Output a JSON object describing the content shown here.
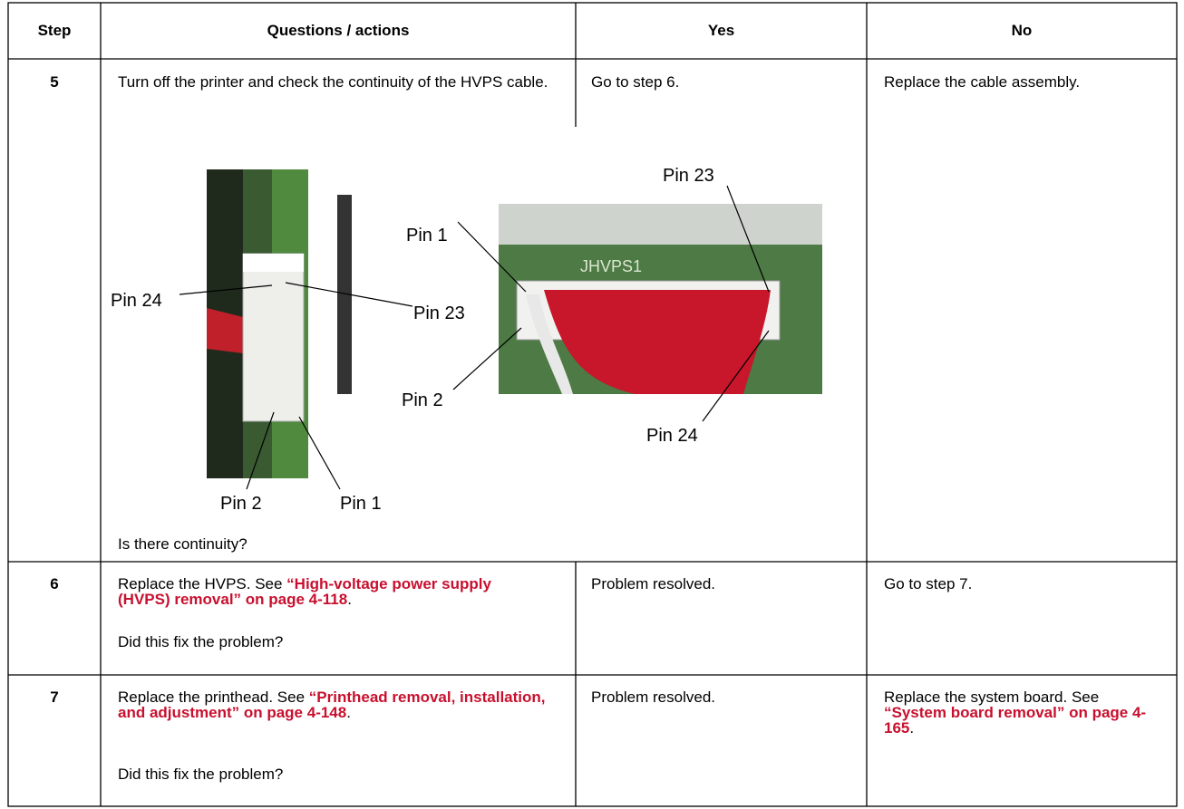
{
  "table": {
    "header": [
      "Step",
      "Questions / actions",
      "Yes",
      "No"
    ],
    "rows": [
      {
        "step": "5",
        "question": "Turn off the printer and check the continuity of the HVPS cable.",
        "figure": {
          "board_marking": "JHVPS1",
          "left_labels": [
            "Pin 24",
            "Pin 23",
            "Pin 2",
            "Pin 1"
          ],
          "right_labels": [
            "Pin 1",
            "Pin 23",
            "Pin 2",
            "Pin 24"
          ]
        },
        "question_after": "Is there continuity?",
        "yes": "Go to step 6.",
        "no": "Replace the cable assembly."
      },
      {
        "step": "6",
        "question_text": "Replace the HVPS. See ",
        "question_link": "“High-voltage power supply (HVPS) removal” on page 4-118",
        "question_end": ".",
        "question_after": "Did this fix the problem?",
        "yes": "Problem resolved.",
        "no": "Go to step 7."
      },
      {
        "step": "7",
        "question_text": "Replace the printhead. See ",
        "question_link": "“Printhead removal, installation, and adjustment” on page 4-148",
        "question_end": ".",
        "question_after": "Did this fix the problem?",
        "yes": "Problem resolved.",
        "no_text": "Replace the system board. See ",
        "no_link": "“System board removal” on page 4-165",
        "no_end": "."
      }
    ]
  }
}
